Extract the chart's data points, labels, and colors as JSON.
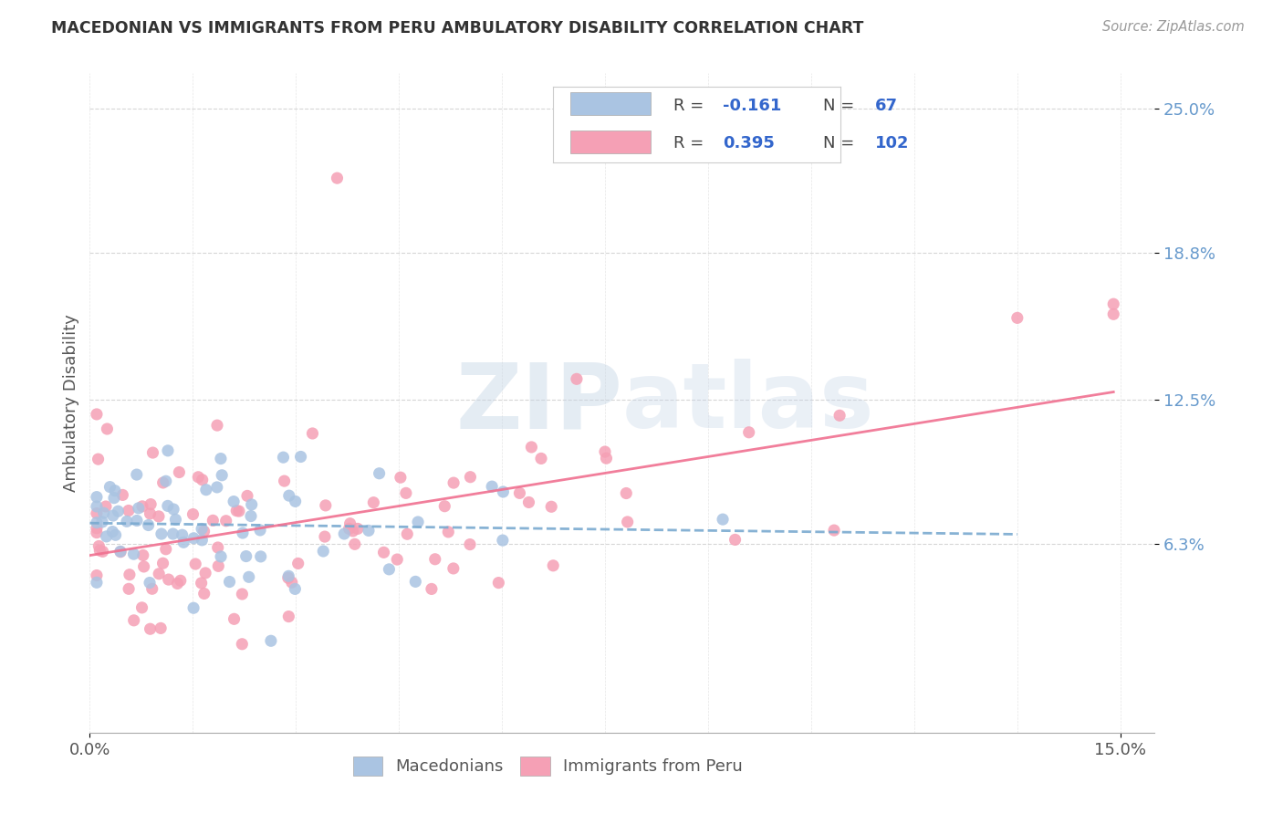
{
  "title": "MACEDONIAN VS IMMIGRANTS FROM PERU AMBULATORY DISABILITY CORRELATION CHART",
  "source": "Source: ZipAtlas.com",
  "ylabel_label": "Ambulatory Disability",
  "xlim": [
    0.0,
    0.155
  ],
  "ylim": [
    -0.018,
    0.265
  ],
  "ytick_values": [
    0.063,
    0.125,
    0.188,
    0.25
  ],
  "ytick_labels": [
    "6.3%",
    "12.5%",
    "18.8%",
    "25.0%"
  ],
  "xtick_values": [
    0.0,
    0.15
  ],
  "xtick_labels": [
    "0.0%",
    "15.0%"
  ],
  "legend_mac_R": "R = -0.161",
  "legend_mac_N": "N =  67",
  "legend_peru_R": "R = 0.395",
  "legend_peru_N": "N = 102",
  "macedonian_color": "#aac4e2",
  "peru_color": "#f5a0b5",
  "macedonian_line_color": "#7aaad0",
  "peru_line_color": "#f07090",
  "watermark_color": "#c8d8ea",
  "background_color": "#ffffff",
  "grid_color": "#cccccc",
  "ytick_color": "#6699cc",
  "title_color": "#333333",
  "source_color": "#999999",
  "legend_text_color_label": "#444444",
  "legend_text_color_value": "#3366cc"
}
